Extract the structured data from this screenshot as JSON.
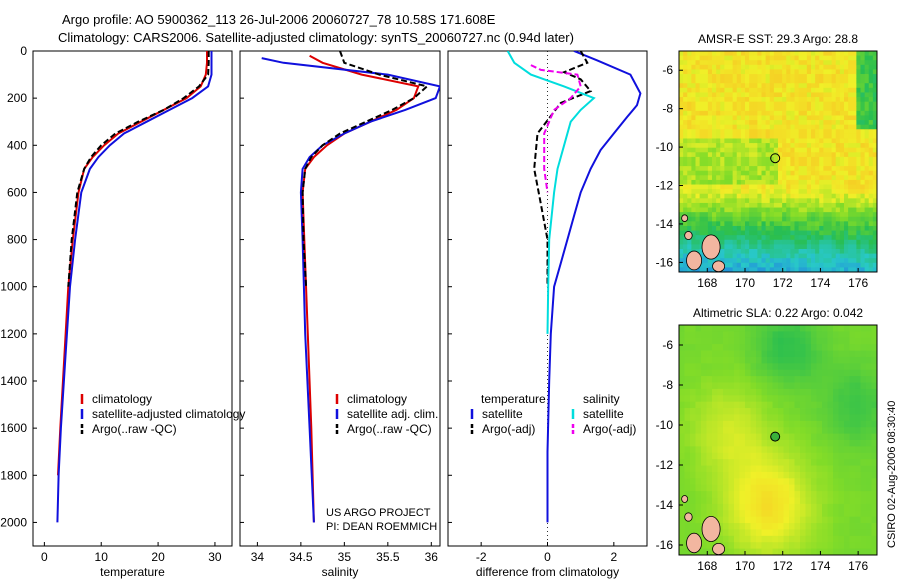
{
  "figure": {
    "title_line1": "Argo profile: AO 5900362_113 26-Jul-2006 20060727_78 10.58S 171.608E",
    "title_line2": "Climatology: CARS2006. Satellite-adjusted climatology: synTS_20060727.nc (0.94d later)",
    "credit_line1": "US ARGO PROJECT",
    "credit_line2": "PI: DEAN ROEMMICH",
    "stamp": "CSIRO 02-Aug-2006 08:30:40"
  },
  "colors": {
    "climatology": "#dd0000",
    "satellite": "#1010dd",
    "argo": "#000000",
    "satellite_salinity": "#00dddd",
    "argo_salinity": "#ee00ee"
  },
  "chart_data": [
    {
      "type": "line",
      "id": "temperature",
      "xlabel": "temperature",
      "xlim": [
        -2,
        33
      ],
      "ylim": [
        0,
        2100
      ],
      "yreverse": true,
      "xticks": [
        0,
        10,
        20,
        30
      ],
      "xtick_labels": [
        "0",
        "10",
        "20",
        "30"
      ],
      "yticks": [
        0,
        200,
        400,
        600,
        800,
        1000,
        1200,
        1400,
        1600,
        1800,
        2000
      ],
      "ytick_labels": [
        "0",
        "200",
        "400",
        "600",
        "800",
        "1000",
        "1200",
        "1400",
        "1600",
        "1800",
        "2000"
      ],
      "legend": [
        "climatology",
        "satellite-adjusted climatology",
        "Argo(..raw -QC)"
      ],
      "series": [
        {
          "name": "climatology",
          "color_key": "climatology",
          "dash": "solid",
          "x": [
            28.6,
            28.6,
            28.4,
            27.5,
            25,
            21,
            17,
            13,
            10.5,
            8.5,
            7,
            6,
            5,
            4.2,
            3.5,
            2.8,
            2.4
          ],
          "y": [
            0,
            50,
            100,
            150,
            200,
            250,
            300,
            350,
            400,
            450,
            500,
            600,
            800,
            1000,
            1300,
            1600,
            1800
          ]
        },
        {
          "name": "satellite-adjusted climatology",
          "color_key": "satellite",
          "dash": "solid",
          "x": [
            29.4,
            29.4,
            29.4,
            28.8,
            26,
            22,
            18,
            14,
            11.5,
            9.5,
            8,
            6.5,
            5.4,
            4.5,
            3.7,
            2.9,
            2.5,
            2.3
          ],
          "y": [
            0,
            50,
            100,
            150,
            200,
            250,
            300,
            350,
            400,
            450,
            500,
            600,
            800,
            1000,
            1300,
            1600,
            1800,
            2000
          ]
        },
        {
          "name": "Argo(..raw -QC)",
          "color_key": "argo",
          "dash": "dashed",
          "x": [
            28.9,
            28.9,
            28.8,
            27.2,
            24.5,
            21,
            16.5,
            12.5,
            10,
            8.2,
            7,
            5.8,
            4.8,
            4.2
          ],
          "y": [
            0,
            50,
            100,
            150,
            200,
            250,
            300,
            350,
            400,
            450,
            500,
            600,
            800,
            1000
          ]
        }
      ]
    },
    {
      "type": "line",
      "id": "salinity",
      "xlabel": "salinity",
      "xlim": [
        33.8,
        36.1
      ],
      "ylim": [
        0,
        2100
      ],
      "yreverse": true,
      "xticks": [
        34,
        34.5,
        35,
        35.5,
        36
      ],
      "xtick_labels": [
        "34",
        "34.5",
        "35",
        "35.5",
        "36"
      ],
      "yticks": [
        0,
        200,
        400,
        600,
        800,
        1000,
        1200,
        1400,
        1600,
        1800,
        2000
      ],
      "legend": [
        "climatology",
        "satellite adj. clim.",
        "Argo(..raw -QC)"
      ],
      "series": [
        {
          "name": "climatology",
          "color_key": "climatology",
          "dash": "solid",
          "x": [
            34.6,
            34.75,
            35.2,
            35.85,
            35.8,
            35.6,
            35.3,
            35,
            34.8,
            34.65,
            34.55,
            34.52,
            34.54,
            34.58,
            34.62,
            34.65
          ],
          "y": [
            20,
            50,
            100,
            150,
            200,
            250,
            300,
            350,
            400,
            450,
            500,
            600,
            800,
            1200,
            1600,
            2000
          ]
        },
        {
          "name": "satellite adj. clim.",
          "color_key": "satellite",
          "dash": "solid",
          "x": [
            34.05,
            34.3,
            35.5,
            36.1,
            36.05,
            35.7,
            35.3,
            35,
            34.75,
            34.6,
            34.52,
            34.5,
            34.52,
            34.55,
            34.6,
            34.65
          ],
          "y": [
            30,
            50,
            100,
            150,
            200,
            250,
            300,
            350,
            400,
            450,
            500,
            600,
            800,
            1200,
            1600,
            2000
          ]
        },
        {
          "name": "Argo(..raw -QC)",
          "color_key": "argo",
          "dash": "dashed",
          "x": [
            34.95,
            35.0,
            35.4,
            35.95,
            35.8,
            35.55,
            35.25,
            34.95,
            34.75,
            34.62,
            34.55,
            34.52,
            34.53,
            34.56
          ],
          "y": [
            0,
            50,
            100,
            150,
            200,
            250,
            300,
            350,
            400,
            450,
            500,
            600,
            800,
            1000
          ]
        }
      ]
    },
    {
      "type": "line",
      "id": "difference",
      "xlabel": "difference from climatology",
      "xlim": [
        -3,
        3
      ],
      "ylim": [
        0,
        2100
      ],
      "yreverse": true,
      "xticks": [
        -2,
        0,
        2
      ],
      "xtick_labels": [
        "-2",
        "0",
        "2"
      ],
      "yticks": [
        0,
        200,
        400,
        600,
        800,
        1000,
        1200,
        1400,
        1600,
        1800,
        2000
      ],
      "legend_headers": [
        "temperature",
        "salinity"
      ],
      "legend": [
        "satellite",
        "Argo(-adj)",
        "satellite",
        "Argo(-adj)"
      ],
      "series": [
        {
          "name": "temperature satellite",
          "color_key": "satellite",
          "dash": "solid",
          "x": [
            0.8,
            1.5,
            2.5,
            2.8,
            2.7,
            2.4,
            2.0,
            1.6,
            1.3,
            1.0,
            0.8,
            0.6,
            0.4,
            0.2,
            0.1,
            0.05,
            0.0,
            0.0
          ],
          "y": [
            0,
            40,
            100,
            180,
            230,
            280,
            350,
            420,
            500,
            600,
            700,
            800,
            900,
            1000,
            1200,
            1400,
            1700,
            2000
          ]
        },
        {
          "name": "temperature Argo(-adj)",
          "color_key": "argo",
          "dash": "dashed",
          "x": [
            1.0,
            1.2,
            0.5,
            1.0,
            1.3,
            0.4,
            -0.3,
            -0.4,
            -0.2,
            0.0,
            0.0
          ],
          "y": [
            0,
            50,
            90,
            120,
            170,
            220,
            350,
            500,
            650,
            800,
            1000
          ]
        },
        {
          "name": "salinity satellite",
          "color_key": "satellite_salinity",
          "dash": "solid",
          "x": [
            -1.2,
            -1.0,
            -0.5,
            0.5,
            1.4,
            1.0,
            0.7,
            0.5,
            0.3,
            0.2,
            0.05,
            0.02,
            0.0
          ],
          "y": [
            0,
            50,
            100,
            150,
            200,
            250,
            300,
            400,
            500,
            600,
            800,
            1000,
            1200
          ]
        },
        {
          "name": "salinity Argo(-adj)",
          "color_key": "argo_salinity",
          "dash": "dashed",
          "x": [
            -0.5,
            -0.2,
            0.9,
            1.0,
            0.7,
            0.2,
            -0.1,
            -0.1,
            0.0
          ],
          "y": [
            60,
            80,
            100,
            150,
            200,
            250,
            350,
            500,
            600
          ]
        }
      ]
    },
    {
      "type": "heatmap",
      "id": "sst_map",
      "title": "AMSR-E SST: 29.3 Argo: 28.8",
      "xlim": [
        166.5,
        177
      ],
      "ylim": [
        -16.5,
        -5
      ],
      "xticks": [
        168,
        170,
        172,
        174,
        176
      ],
      "xtick_labels": [
        "168",
        "170",
        "172",
        "174",
        "176"
      ],
      "yticks": [
        -6,
        -8,
        -10,
        -12,
        -14,
        -16
      ],
      "ytick_labels": [
        "-6",
        "-8",
        "-10",
        "-12",
        "-14",
        "-16"
      ],
      "marker": {
        "lon": 171.6,
        "lat": -10.58
      }
    },
    {
      "type": "heatmap",
      "id": "sla_map",
      "title": "Altimetric SLA: 0.22 Argo: 0.042",
      "xlim": [
        166.5,
        177
      ],
      "ylim": [
        -16.5,
        -5
      ],
      "xticks": [
        168,
        170,
        172,
        174,
        176
      ],
      "xtick_labels": [
        "168",
        "170",
        "172",
        "174",
        "176"
      ],
      "yticks": [
        -6,
        -8,
        -10,
        -12,
        -14,
        -16
      ],
      "ytick_labels": [
        "-6",
        "-8",
        "-10",
        "-12",
        "-14",
        "-16"
      ],
      "marker": {
        "lon": 171.6,
        "lat": -10.58
      }
    }
  ]
}
